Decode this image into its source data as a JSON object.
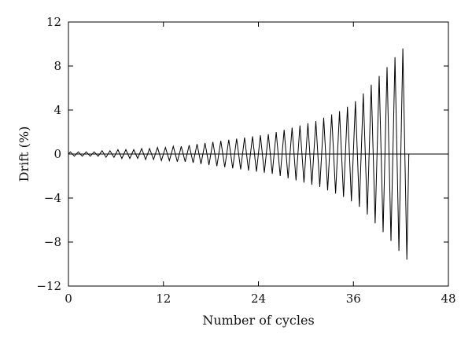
{
  "chart_data": {
    "type": "line",
    "xlabel": "Number of cycles",
    "ylabel": "Drift (%)",
    "xlim": [
      0,
      48
    ],
    "ylim": [
      -12,
      12
    ],
    "x_ticks": [
      0,
      12,
      24,
      36,
      48
    ],
    "y_ticks": [
      12,
      8,
      4,
      0,
      -4,
      -8,
      -12
    ],
    "x_tick_labels": [
      "0",
      "12",
      "24",
      "36",
      "48"
    ],
    "y_tick_labels": [
      "12",
      "8",
      "4",
      "0",
      "−4",
      "−8",
      "−12"
    ],
    "grid": false,
    "legend": "none",
    "reference_line_y": 0,
    "series": [
      {
        "cycle_amplitudes": [
          0.2,
          0.2,
          0.2,
          0.2,
          0.3,
          0.3,
          0.4,
          0.4,
          0.4,
          0.5,
          0.5,
          0.6,
          0.6,
          0.7,
          0.7,
          0.8,
          0.9,
          1.0,
          1.1,
          1.2,
          1.3,
          1.4,
          1.5,
          1.6,
          1.7,
          1.8,
          2.0,
          2.2,
          2.4,
          2.6,
          2.8,
          3.0,
          3.3,
          3.6,
          3.9,
          4.3,
          4.8,
          5.5,
          6.3,
          7.1,
          7.9,
          8.8,
          9.6
        ],
        "x": [
          0,
          0.25,
          0.75,
          1.25,
          1.75,
          2.25,
          2.75,
          3.25,
          3.75,
          4.25,
          4.75,
          5.25,
          5.75,
          6.25,
          6.75,
          7.25,
          7.75,
          8.25,
          8.75,
          9.25,
          9.75,
          10.25,
          10.75,
          11.25,
          11.75,
          12.25,
          12.75,
          13.25,
          13.75,
          14.25,
          14.75,
          15.25,
          15.75,
          16.25,
          16.75,
          17.25,
          17.75,
          18.25,
          18.75,
          19.25,
          19.75,
          20.25,
          20.75,
          21.25,
          21.75,
          22.25,
          22.75,
          23.25,
          23.75,
          24.25,
          24.75,
          25.25,
          25.75,
          26.25,
          26.75,
          27.25,
          27.75,
          28.25,
          28.75,
          29.25,
          29.75,
          30.25,
          30.75,
          31.25,
          31.75,
          32.25,
          32.75,
          33.25,
          33.75,
          34.25,
          34.75,
          35.25,
          35.75,
          36.25,
          36.75,
          37.25,
          37.75,
          38.25,
          38.75,
          39.25,
          39.75,
          40.25,
          40.75,
          41.25,
          41.75,
          42.25,
          42.75,
          43.0
        ],
        "y": [
          0,
          0.2,
          -0.2,
          0.2,
          -0.2,
          0.2,
          -0.2,
          0.2,
          -0.2,
          0.3,
          -0.3,
          0.3,
          -0.3,
          0.4,
          -0.4,
          0.4,
          -0.4,
          0.4,
          -0.4,
          0.5,
          -0.5,
          0.5,
          -0.5,
          0.6,
          -0.6,
          0.6,
          -0.6,
          0.7,
          -0.7,
          0.7,
          -0.7,
          0.8,
          -0.8,
          0.9,
          -0.9,
          1.0,
          -1.0,
          1.1,
          -1.1,
          1.2,
          -1.2,
          1.3,
          -1.3,
          1.4,
          -1.4,
          1.5,
          -1.5,
          1.6,
          -1.6,
          1.7,
          -1.7,
          1.8,
          -1.8,
          2.0,
          -2.0,
          2.2,
          -2.2,
          2.4,
          -2.4,
          2.6,
          -2.6,
          2.8,
          -2.8,
          3.0,
          -3.0,
          3.3,
          -3.3,
          3.6,
          -3.6,
          3.9,
          -3.9,
          4.3,
          -4.3,
          4.8,
          -4.8,
          5.5,
          -5.5,
          6.3,
          -6.3,
          7.1,
          -7.1,
          7.9,
          -7.9,
          8.8,
          -8.8,
          9.6,
          -9.6,
          0
        ]
      }
    ]
  }
}
